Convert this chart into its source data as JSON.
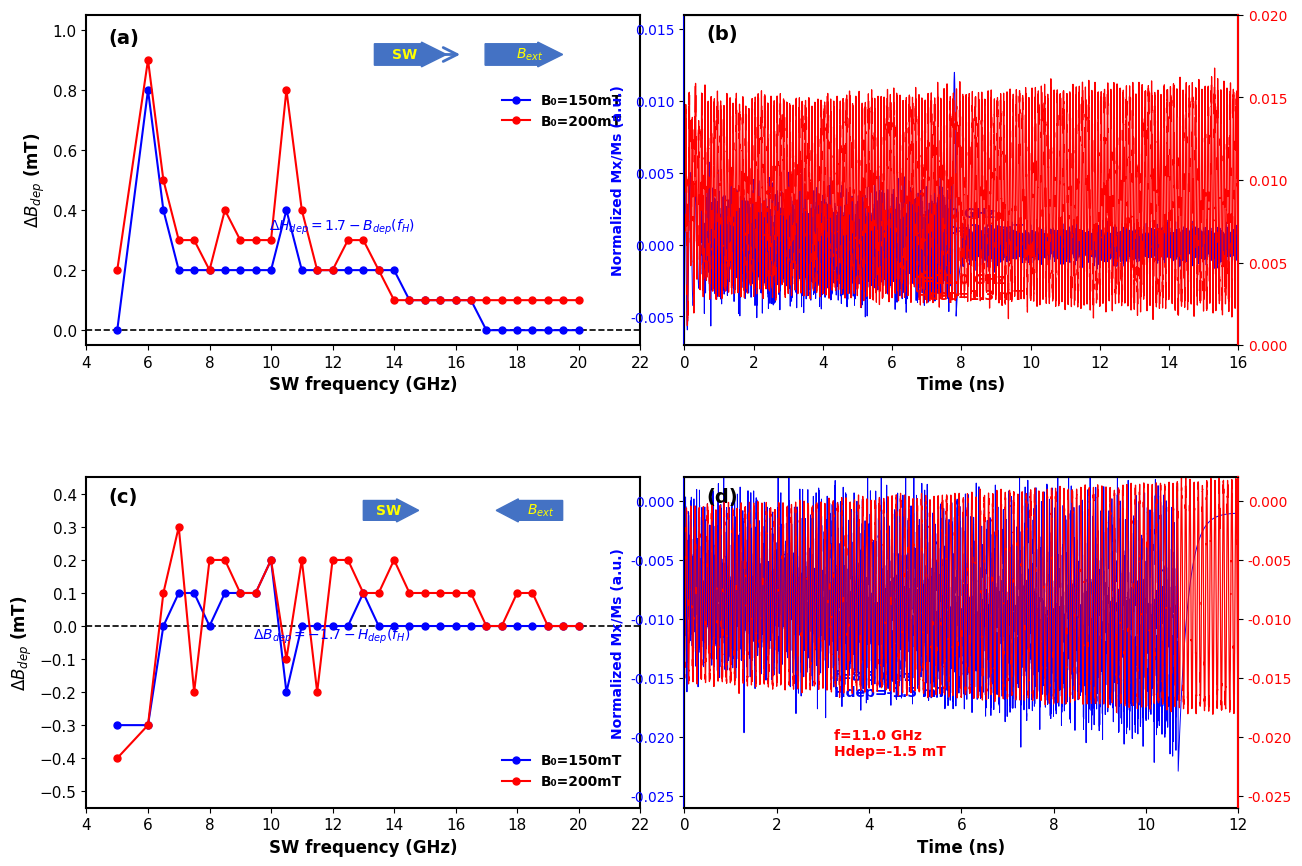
{
  "panel_a": {
    "title": "(a)",
    "xlabel": "SW frequency (GHz)",
    "ylabel": "\\u0394B_dep (mT)",
    "xlim": [
      4,
      22
    ],
    "ylim": [
      -0.05,
      1.05
    ],
    "yticks": [
      0.0,
      0.2,
      0.4,
      0.6,
      0.8,
      1.0
    ],
    "xticks": [
      4,
      6,
      8,
      10,
      12,
      14,
      16,
      18,
      20,
      22
    ],
    "blue_x": [
      5,
      6,
      6.5,
      7,
      7.5,
      8,
      8.5,
      9,
      9.5,
      10,
      10.5,
      11,
      11.5,
      12,
      12.5,
      13,
      13.5,
      14,
      14.5,
      15,
      15.5,
      16,
      16.5,
      17,
      17.5,
      18,
      18.5,
      19,
      19.5,
      20
    ],
    "blue_y": [
      0.0,
      0.8,
      0.4,
      0.2,
      0.2,
      0.2,
      0.2,
      0.2,
      0.2,
      0.2,
      0.4,
      0.2,
      0.2,
      0.2,
      0.2,
      0.2,
      0.2,
      0.2,
      0.1,
      0.1,
      0.1,
      0.1,
      0.1,
      0.0,
      0.0,
      0.0,
      0.0,
      0.0,
      0.0,
      0.0
    ],
    "red_x": [
      5,
      6,
      6.5,
      7,
      7.5,
      8,
      8.5,
      9,
      9.5,
      10,
      10.5,
      11,
      11.5,
      12,
      12.5,
      13,
      13.5,
      14,
      14.5,
      15,
      15.5,
      16,
      16.5,
      17,
      17.5,
      18,
      18.5,
      19,
      19.5,
      20
    ],
    "red_y": [
      0.2,
      0.9,
      0.5,
      0.3,
      0.3,
      0.2,
      0.4,
      0.3,
      0.3,
      0.3,
      0.8,
      0.4,
      0.2,
      0.2,
      0.3,
      0.3,
      0.2,
      0.1,
      0.1,
      0.1,
      0.1,
      0.1,
      0.1,
      0.1,
      0.1,
      0.1,
      0.1,
      0.1,
      0.1,
      0.1
    ],
    "legend_blue": "B₀=150mT",
    "legend_red": "B₀=200mT"
  },
  "panel_b": {
    "title": "(b)",
    "xlabel": "Time (ns)",
    "ylabel_left": "Normalized Mx/Ms (a.u.)",
    "xlim": [
      0,
      16
    ],
    "ylim_left": [
      -0.007,
      0.016
    ],
    "ylim_right": [
      0.0,
      0.02
    ],
    "yticks_left": [
      -0.005,
      0.0,
      0.005,
      0.01,
      0.015
    ],
    "yticks_right": [
      0.0,
      0.005,
      0.01,
      0.015,
      0.02
    ],
    "xticks": [
      0,
      2,
      4,
      6,
      8,
      10,
      12,
      14,
      16
    ],
    "legend_blue": "f=6.0 GHz\nHdep=1.0 mT",
    "legend_red": "f=11.0 GHz\nHdep=1.3 mT"
  },
  "panel_c": {
    "title": "(c)",
    "xlabel": "SW frequency (GHz)",
    "ylabel": "\\u0394B_dep (mT)",
    "xlim": [
      4,
      22
    ],
    "ylim": [
      -0.55,
      0.45
    ],
    "yticks": [
      -0.5,
      -0.4,
      -0.3,
      -0.2,
      -0.1,
      0.0,
      0.1,
      0.2,
      0.3,
      0.4
    ],
    "xticks": [
      4,
      6,
      8,
      10,
      12,
      14,
      16,
      18,
      20,
      22
    ],
    "blue_x": [
      5,
      6,
      6.5,
      7,
      7.5,
      8,
      8.5,
      9,
      9.5,
      10,
      10.5,
      11,
      11.5,
      12,
      12.5,
      13,
      13.5,
      14,
      14.5,
      15,
      15.5,
      16,
      16.5,
      17,
      17.5,
      18,
      18.5,
      19,
      19.5,
      20
    ],
    "blue_y": [
      -0.3,
      -0.3,
      0.0,
      0.1,
      0.1,
      0.0,
      0.1,
      0.1,
      0.1,
      0.2,
      -0.2,
      0.0,
      0.0,
      0.0,
      0.0,
      0.1,
      0.0,
      0.0,
      0.0,
      0.0,
      0.0,
      0.0,
      0.0,
      0.0,
      0.0,
      0.0,
      0.0,
      0.0,
      0.0,
      0.0
    ],
    "red_x": [
      5,
      6,
      6.5,
      7,
      7.5,
      8,
      8.5,
      9,
      9.5,
      10,
      10.5,
      11,
      11.5,
      12,
      12.5,
      13,
      13.5,
      14,
      14.5,
      15,
      15.5,
      16,
      16.5,
      17,
      17.5,
      18,
      18.5,
      19,
      19.5,
      20
    ],
    "red_y": [
      -0.4,
      -0.3,
      0.1,
      0.3,
      -0.2,
      0.2,
      0.2,
      0.1,
      0.1,
      0.2,
      -0.1,
      0.2,
      -0.2,
      0.2,
      0.2,
      0.1,
      0.1,
      0.2,
      0.1,
      0.1,
      0.1,
      0.1,
      0.1,
      0.0,
      0.0,
      0.1,
      0.1,
      0.0,
      0.0,
      0.0
    ],
    "legend_blue": "B₀=150mT",
    "legend_red": "B₀=200mT"
  },
  "panel_d": {
    "title": "(d)",
    "xlabel": "Time (ns)",
    "ylabel_left": "Normalized Mx/Ms (a.u.)",
    "xlim": [
      0,
      12
    ],
    "ylim_left": [
      -0.026,
      0.002
    ],
    "ylim_right": [
      -0.026,
      0.002
    ],
    "yticks_left": [
      -0.025,
      -0.02,
      -0.015,
      -0.01,
      -0.005,
      0.0
    ],
    "yticks_right": [
      -0.025,
      -0.02,
      -0.015,
      -0.01,
      -0.005,
      0.0
    ],
    "xticks": [
      0,
      2,
      4,
      6,
      8,
      10,
      12
    ],
    "legend_blue": "f=8.5 GHz\nHdep=-1.5 mT",
    "legend_red": "f=11.0 GHz\nHdep=-1.5 mT"
  },
  "colors": {
    "blue": "#0000FF",
    "red": "#FF0000",
    "black": "#000000",
    "yellow_text": "#FFFF00",
    "arrow_color": "#4472C4"
  }
}
